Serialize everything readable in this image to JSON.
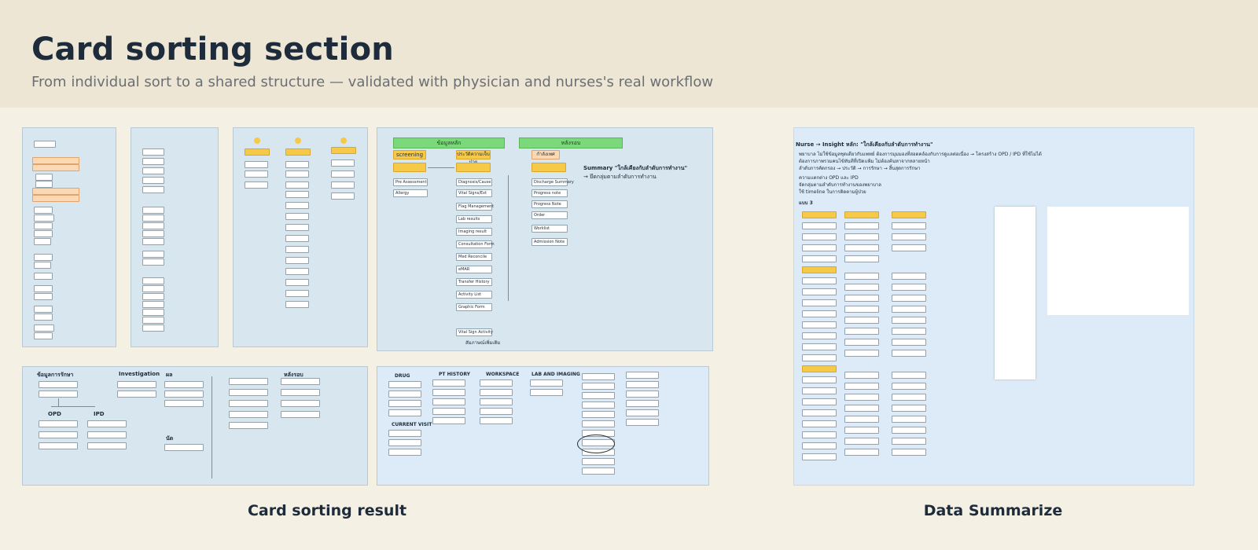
{
  "header": {
    "title": "Card sorting section",
    "subtitle": "From individual sort to a shared structure — validated with physician and nurses's real workflow"
  },
  "captions": {
    "left": "Card sorting result",
    "right": "Data Summarize"
  },
  "board_top": {
    "columns": [
      "ข้อมูลหลัก",
      "หลังรอบ"
    ],
    "group_a": "screening",
    "group_b": "ประวัติความเจ็บป่วย",
    "group_c": "กำลังเพศ",
    "summary_title": "Summary \"ใกล้เคียงกับลำดับการทำงาน\"",
    "summary_sub": "→ ยึดกลุ่มตามลำดับการทำงาน",
    "items_left": [
      "Pre Assessment",
      "Allergy"
    ],
    "items_mid": [
      "Diagnosis/Cause",
      "Vital Signs/Ext",
      "Flag Management",
      "Lab results",
      "Imaging result",
      "Consultation Form",
      "Med Reconcile",
      "eMAR",
      "Transfer History",
      "Activity List",
      "Graphic Form",
      "Vital Sign Activity"
    ],
    "items_right": [
      "Discharge Summary",
      "Progress note",
      "Progress Note",
      "Order",
      "Worklist",
      "Admission Note"
    ],
    "footnote": "สัมภาษณ์เพิ่มเติม"
  },
  "board_bottom": {
    "left_headers": [
      "ข้อมูลการรักษา",
      "Investigation",
      "ผล",
      "หลังรอบ"
    ],
    "left_groups": [
      "OPD",
      "IPD",
      "นัด"
    ],
    "right_headers": [
      "DRUG",
      "PT HISTORY",
      "WORKSPACE",
      "LAB AND IMAGING",
      "CURRENT VISIT"
    ]
  },
  "summary_board": {
    "heading": "Nurse → Insight หลัก: \"ใกล้เคียงกับลำดับการทำงาน\"",
    "bullets": [
      "พยาบาล ไม่ใช้ข้อมูลชุดเดียวกับแพทย์ ต้องการมุมมองที่สอดคล้องกับการดูแลต่อเนื่อง → โครงสร้าง OPD / IPD ที่ใช้ไม่ได้",
      "ต้องการภาพรวมคนไข้ทันทีที่เปิดแฟ้ม ไม่ต้องค้นหาจากหลายหน้า",
      "ลำดับการคัดกรอง → ประวัติ → การรักษา → สิ้นสุดการรักษา"
    ],
    "bullets2": [
      "ความแตกต่าง OPD และ IPD",
      "จัดกลุ่มตามลำดับการทำงานของพยาบาล",
      "ใช้ timeline ในการติดตามผู้ป่วย"
    ],
    "label": "แบบ 3"
  }
}
